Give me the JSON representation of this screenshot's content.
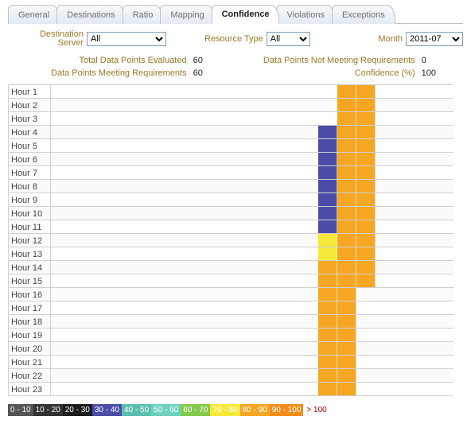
{
  "colors": {
    "c0": "#555555",
    "c10": "#333333",
    "c20": "#1c1c1c",
    "c30": "#4c4ca8",
    "c40": "#5abfb0",
    "c50": "#6fd2c0",
    "c60": "#83c94a",
    "c70": "#f7e93a",
    "c80": "#f5a623",
    "c90": "#f28c1b",
    "c100": "#d84a1f",
    "labelBrown": "#9a7a2a"
  },
  "tabs": [
    {
      "label": "General"
    },
    {
      "label": "Destinations"
    },
    {
      "label": "Ratio"
    },
    {
      "label": "Mapping"
    },
    {
      "label": "Confidence",
      "active": true
    },
    {
      "label": "Violations"
    },
    {
      "label": "Exceptions"
    }
  ],
  "filters": {
    "destServer": {
      "label": "Destination\nServer",
      "value": "All"
    },
    "resourceType": {
      "label": "Resource Type",
      "value": "All"
    },
    "month": {
      "label": "Month",
      "value": "2011-07"
    }
  },
  "stats": {
    "totalEvaluated": {
      "label": "Total Data Points Evaluated",
      "value": "60"
    },
    "notMeeting": {
      "label": "Data Points Not Meeting Requirements",
      "value": "0"
    },
    "meeting": {
      "label": "Data Points Meeting Requirements",
      "value": "60"
    },
    "confidence": {
      "label": "Confidence (%)",
      "value": "100"
    }
  },
  "grid": {
    "columnCount": 21,
    "tileOffset": 14,
    "rows": [
      {
        "label": "Hour  1",
        "cells": [
          {
            "i": 15,
            "c": "c80"
          },
          {
            "i": 16,
            "c": "c80"
          }
        ]
      },
      {
        "label": "Hour  2",
        "cells": [
          {
            "i": 15,
            "c": "c80"
          },
          {
            "i": 16,
            "c": "c80"
          }
        ]
      },
      {
        "label": "Hour  3",
        "cells": [
          {
            "i": 15,
            "c": "c80"
          },
          {
            "i": 16,
            "c": "c80"
          }
        ]
      },
      {
        "label": "Hour  4",
        "cells": [
          {
            "i": 14,
            "c": "c30"
          },
          {
            "i": 15,
            "c": "c80"
          },
          {
            "i": 16,
            "c": "c80"
          }
        ]
      },
      {
        "label": "Hour  5",
        "cells": [
          {
            "i": 14,
            "c": "c30"
          },
          {
            "i": 15,
            "c": "c80"
          },
          {
            "i": 16,
            "c": "c80"
          }
        ]
      },
      {
        "label": "Hour  6",
        "cells": [
          {
            "i": 14,
            "c": "c30"
          },
          {
            "i": 15,
            "c": "c80"
          },
          {
            "i": 16,
            "c": "c80"
          }
        ]
      },
      {
        "label": "Hour  7",
        "cells": [
          {
            "i": 14,
            "c": "c30"
          },
          {
            "i": 15,
            "c": "c80"
          },
          {
            "i": 16,
            "c": "c80"
          }
        ]
      },
      {
        "label": "Hour  8",
        "cells": [
          {
            "i": 14,
            "c": "c30"
          },
          {
            "i": 15,
            "c": "c80"
          },
          {
            "i": 16,
            "c": "c80"
          }
        ]
      },
      {
        "label": "Hour  9",
        "cells": [
          {
            "i": 14,
            "c": "c30"
          },
          {
            "i": 15,
            "c": "c80"
          },
          {
            "i": 16,
            "c": "c80"
          }
        ]
      },
      {
        "label": "Hour  10",
        "cells": [
          {
            "i": 14,
            "c": "c30"
          },
          {
            "i": 15,
            "c": "c80"
          },
          {
            "i": 16,
            "c": "c80"
          }
        ]
      },
      {
        "label": "Hour  11",
        "cells": [
          {
            "i": 14,
            "c": "c30"
          },
          {
            "i": 15,
            "c": "c80"
          },
          {
            "i": 16,
            "c": "c80"
          }
        ]
      },
      {
        "label": "Hour  12",
        "cells": [
          {
            "i": 14,
            "c": "c70"
          },
          {
            "i": 15,
            "c": "c80"
          },
          {
            "i": 16,
            "c": "c80"
          }
        ]
      },
      {
        "label": "Hour  13",
        "cells": [
          {
            "i": 14,
            "c": "c70"
          },
          {
            "i": 15,
            "c": "c80"
          },
          {
            "i": 16,
            "c": "c80"
          }
        ]
      },
      {
        "label": "Hour  14",
        "cells": [
          {
            "i": 14,
            "c": "c80"
          },
          {
            "i": 15,
            "c": "c80"
          },
          {
            "i": 16,
            "c": "c80"
          }
        ]
      },
      {
        "label": "Hour  15",
        "cells": [
          {
            "i": 14,
            "c": "c80"
          },
          {
            "i": 15,
            "c": "c80"
          },
          {
            "i": 16,
            "c": "c80"
          }
        ]
      },
      {
        "label": "Hour  16",
        "cells": [
          {
            "i": 14,
            "c": "c80"
          },
          {
            "i": 15,
            "c": "c80"
          }
        ]
      },
      {
        "label": "Hour  17",
        "cells": [
          {
            "i": 14,
            "c": "c80"
          },
          {
            "i": 15,
            "c": "c80"
          }
        ]
      },
      {
        "label": "Hour  18",
        "cells": [
          {
            "i": 14,
            "c": "c80"
          },
          {
            "i": 15,
            "c": "c80"
          }
        ]
      },
      {
        "label": "Hour  19",
        "cells": [
          {
            "i": 14,
            "c": "c80"
          },
          {
            "i": 15,
            "c": "c80"
          }
        ]
      },
      {
        "label": "Hour  20",
        "cells": [
          {
            "i": 14,
            "c": "c80"
          },
          {
            "i": 15,
            "c": "c80"
          }
        ]
      },
      {
        "label": "Hour  21",
        "cells": [
          {
            "i": 14,
            "c": "c80"
          },
          {
            "i": 15,
            "c": "c80"
          }
        ]
      },
      {
        "label": "Hour  22",
        "cells": [
          {
            "i": 14,
            "c": "c80"
          },
          {
            "i": 15,
            "c": "c80"
          }
        ]
      },
      {
        "label": "Hour  23",
        "cells": [
          {
            "i": 14,
            "c": "c80"
          },
          {
            "i": 15,
            "c": "c80"
          }
        ]
      }
    ]
  },
  "legend": [
    {
      "label": "0 - 10",
      "c": "c0"
    },
    {
      "label": "10 - 20",
      "c": "c10"
    },
    {
      "label": "20 - 30",
      "c": "c20"
    },
    {
      "label": "30 - 40",
      "c": "c30"
    },
    {
      "label": "40 - 50",
      "c": "c40"
    },
    {
      "label": "50 - 60",
      "c": "c50"
    },
    {
      "label": "60 - 70",
      "c": "c60"
    },
    {
      "label": "70 - 80",
      "c": "c70"
    },
    {
      "label": "80 - 90",
      "c": "c80"
    },
    {
      "label": "90 - 100",
      "c": "c90"
    }
  ],
  "legendOver": "> 100"
}
